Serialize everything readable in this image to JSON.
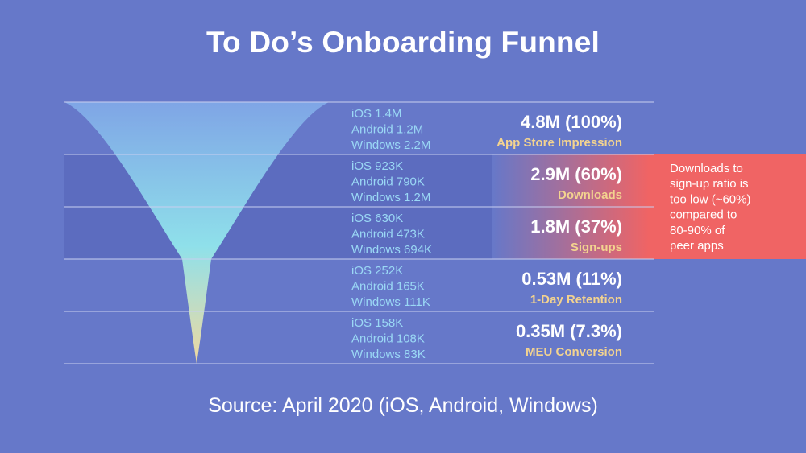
{
  "title": "To Do’s Onboarding Funnel",
  "source": "Source: April 2020 (iOS, Android, Windows)",
  "colors": {
    "background": "#6678c9",
    "band_highlight": "#5c6cbf",
    "divider": "#c9cff0",
    "platform_text": "#9ad8f5",
    "stage_label": "#f3d38f",
    "callout_start": "#6678c9",
    "callout_end": "#f06464",
    "funnel_top": "#7fa5e6",
    "funnel_mid": "#8fe0ea",
    "funnel_bottom": "#f0d9a0"
  },
  "chart_data": {
    "type": "funnel",
    "stages": [
      {
        "label": "App Store Impression",
        "total": "4.8M (100%)",
        "value_m": 4.8,
        "percent": 100,
        "breakdown": [
          "iOS 1.4M",
          "Android 1.2M",
          "Windows 2.2M"
        ]
      },
      {
        "label": "Downloads",
        "total": "2.9M (60%)",
        "value_m": 2.9,
        "percent": 60,
        "breakdown": [
          "iOS 923K",
          "Android 790K",
          "Windows 1.2M"
        ]
      },
      {
        "label": "Sign-ups",
        "total": "1.8M (37%)",
        "value_m": 1.8,
        "percent": 37,
        "breakdown": [
          "iOS 630K",
          "Android 473K",
          "Windows 694K"
        ]
      },
      {
        "label": "1-Day Retention",
        "total": "0.53M (11%)",
        "value_m": 0.53,
        "percent": 11,
        "breakdown": [
          "iOS 252K",
          "Android 165K",
          "Windows 111K"
        ]
      },
      {
        "label": "MEU Conversion",
        "total": "0.35M (7.3%)",
        "value_m": 0.35,
        "percent": 7.3,
        "breakdown": [
          "iOS 158K",
          "Android 108K",
          "Windows 83K"
        ]
      }
    ],
    "callout": {
      "lines": [
        "Downloads to",
        "sign-up ratio is",
        "too low (~60%)",
        "compared to",
        "80-90% of",
        "peer apps"
      ],
      "stages": [
        1,
        2
      ]
    }
  }
}
